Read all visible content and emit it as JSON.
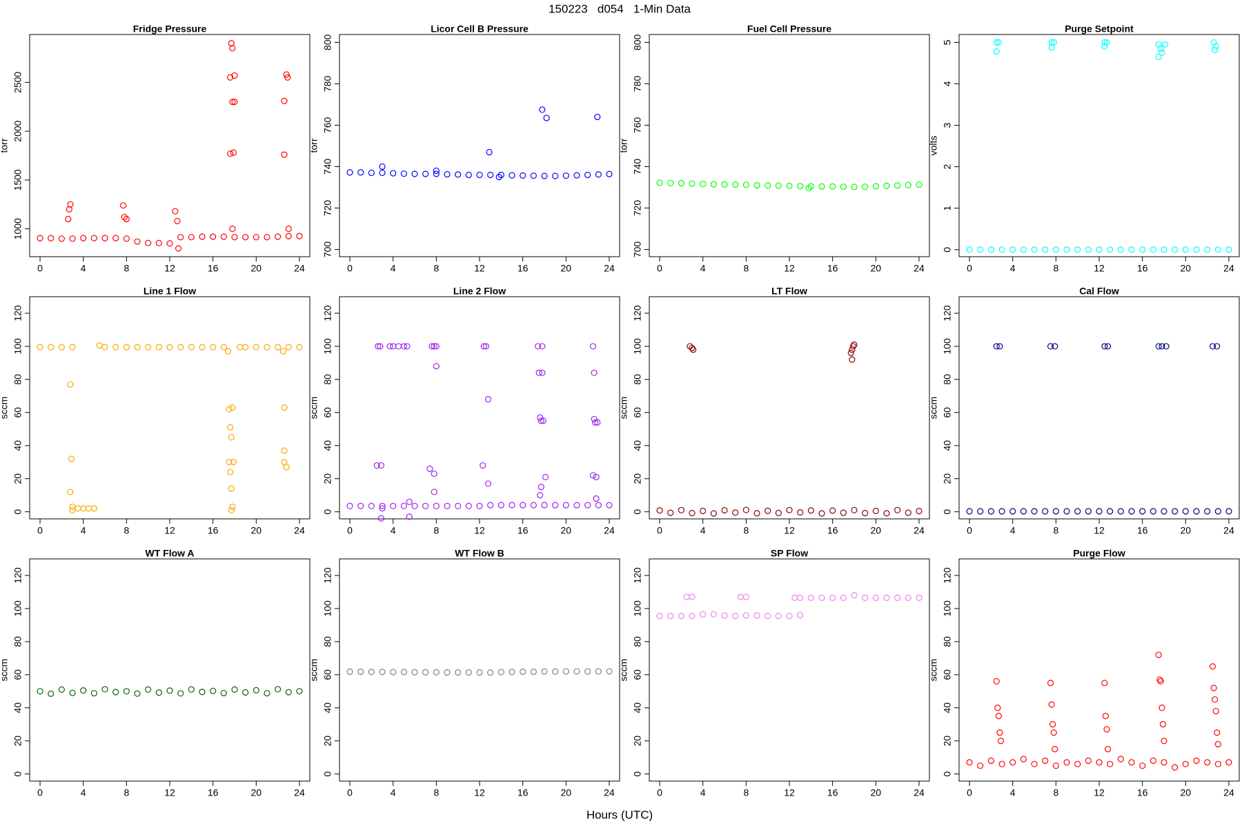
{
  "title": "150223   d054   1-Min Data",
  "xlabel": "Hours (UTC)",
  "chart_data": [
    {
      "type": "scatter",
      "title": "Fridge Pressure",
      "ylabel": "torr",
      "color": "#ff0000",
      "xlim": [
        -0.96,
        24.96
      ],
      "xticks": [
        0,
        4,
        8,
        12,
        16,
        20,
        24
      ],
      "ylim": [
        715,
        2990
      ],
      "yticks": [
        1000,
        1500,
        2000,
        2500
      ],
      "x": [
        0,
        1,
        2,
        3,
        4,
        5,
        6,
        7,
        8,
        9,
        10,
        11,
        12,
        13,
        14,
        15,
        16,
        17,
        18,
        19,
        20,
        21,
        22,
        23,
        24,
        2.6,
        2.7,
        2.8,
        7.7,
        7.8,
        8,
        12.5,
        12.7,
        12.8,
        17.6,
        17.7,
        17.8,
        17.6,
        18,
        17.9,
        18,
        17.8,
        22.6,
        22.6,
        22.8,
        22.9,
        23,
        17.8
      ],
      "values": [
        905,
        905,
        900,
        900,
        905,
        905,
        905,
        905,
        900,
        870,
        855,
        855,
        850,
        915,
        915,
        920,
        920,
        920,
        915,
        915,
        915,
        915,
        920,
        925,
        925,
        1100,
        1200,
        1250,
        1240,
        1120,
        1100,
        1180,
        1080,
        800,
        2550,
        2900,
        2300,
        1770,
        2570,
        1780,
        2300,
        2850,
        2310,
        1760,
        2580,
        2550,
        1000,
        1000
      ]
    },
    {
      "type": "scatter",
      "title": "Licor Cell B Pressure",
      "ylabel": "torr",
      "color": "#0000ff",
      "xlim": [
        -0.96,
        24.96
      ],
      "xticks": [
        0,
        4,
        8,
        12,
        16,
        20,
        24
      ],
      "ylim": [
        696.5,
        803.8
      ],
      "yticks": [
        700,
        720,
        740,
        760,
        780,
        800
      ],
      "x": [
        0,
        1,
        2,
        3,
        4,
        5,
        6,
        7,
        8,
        9,
        10,
        11,
        12,
        13,
        14,
        15,
        16,
        17,
        18,
        19,
        20,
        21,
        22,
        23,
        24,
        3,
        8,
        12.9,
        13.8,
        17.8,
        18.2,
        22.9
      ],
      "values": [
        737.2,
        737.2,
        737,
        737,
        736.8,
        736.6,
        736.5,
        736.5,
        736.5,
        736.3,
        736.2,
        736,
        736,
        736,
        736,
        735.8,
        735.7,
        735.6,
        735.5,
        735.5,
        735.6,
        735.8,
        736,
        736.2,
        736.4,
        740,
        738,
        747,
        735,
        767.5,
        763.5,
        764
      ]
    },
    {
      "type": "scatter",
      "title": "Fuel Cell Pressure",
      "ylabel": "torr",
      "color": "#00ff00",
      "xlim": [
        -0.96,
        24.96
      ],
      "xticks": [
        0,
        4,
        8,
        12,
        16,
        20,
        24
      ],
      "ylim": [
        696.5,
        803.8
      ],
      "yticks": [
        700,
        720,
        740,
        760,
        780,
        800
      ],
      "x": [
        0,
        1,
        2,
        3,
        4,
        5,
        6,
        7,
        8,
        9,
        10,
        11,
        12,
        13,
        14,
        15,
        16,
        17,
        18,
        19,
        20,
        21,
        22,
        23,
        24,
        13.8
      ],
      "values": [
        732.2,
        732.1,
        732,
        731.8,
        731.6,
        731.5,
        731.4,
        731.3,
        731.2,
        731,
        730.9,
        730.8,
        730.7,
        730.6,
        730.5,
        730.4,
        730.4,
        730.3,
        730.2,
        730.3,
        730.5,
        730.7,
        730.9,
        731.1,
        731.3,
        729.6
      ]
    },
    {
      "type": "scatter",
      "title": "Purge Setpoint",
      "ylabel": "volts",
      "color": "#00ffff",
      "xlim": [
        -0.96,
        24.96
      ],
      "xticks": [
        0,
        4,
        8,
        12,
        16,
        20,
        24
      ],
      "ylim": [
        -0.17,
        5.19
      ],
      "yticks": [
        0,
        1,
        2,
        3,
        4,
        5
      ],
      "x": [
        0,
        1,
        2,
        3,
        4,
        5,
        6,
        7,
        8,
        9,
        10,
        11,
        12,
        13,
        14,
        15,
        16,
        17,
        18,
        19,
        20,
        21,
        22,
        23,
        24,
        2.5,
        2.7,
        2.5,
        7.6,
        7.8,
        7.6,
        12.5,
        12.7,
        12.5,
        17.5,
        17.7,
        17.8,
        17.5,
        18.1,
        22.6,
        22.8,
        22.7
      ],
      "values": [
        0,
        0,
        0,
        0,
        0,
        0,
        0,
        0,
        0,
        0,
        0,
        0,
        0,
        0,
        0,
        0,
        0,
        0,
        0,
        0,
        0,
        0,
        0,
        0,
        0,
        5,
        5,
        4.78,
        5,
        5,
        4.88,
        5,
        5,
        4.9,
        4.95,
        4.85,
        4.75,
        4.65,
        4.95,
        5,
        4.9,
        4.82
      ]
    },
    {
      "type": "scatter",
      "title": "Line 1 Flow",
      "ylabel": "sccm",
      "color": "#ffa500",
      "xlim": [
        -0.96,
        24.96
      ],
      "xticks": [
        0,
        4,
        8,
        12,
        16,
        20,
        24
      ],
      "ylim": [
        -4.3,
        130
      ],
      "yticks": [
        0,
        20,
        40,
        60,
        80,
        100,
        120
      ],
      "x": [
        0,
        1,
        2,
        3,
        3.5,
        4,
        4.5,
        5,
        5.5,
        6,
        7,
        8,
        9,
        10,
        11,
        12,
        13,
        14,
        15,
        16,
        17,
        18.5,
        19,
        20,
        21,
        22,
        23,
        24,
        2.8,
        2.9,
        2.8,
        3,
        3,
        17.5,
        17.8,
        17.6,
        17.7,
        17.5,
        17.6,
        17.9,
        17.7,
        17.8,
        17.7,
        17.4,
        22.6,
        22.6,
        22.8,
        22.6,
        22.5
      ],
      "values": [
        99.5,
        99.5,
        99.5,
        99.5,
        2,
        2,
        2,
        2,
        100.5,
        99.5,
        99.5,
        99.5,
        99.5,
        99.5,
        99.5,
        99.5,
        99.5,
        99.5,
        99.5,
        99.5,
        99.5,
        99.5,
        99.5,
        99.5,
        99.5,
        99.5,
        99.5,
        99.5,
        77,
        32,
        12,
        3,
        1,
        62,
        63,
        51,
        45,
        30,
        24,
        30,
        14,
        3,
        1,
        97,
        63,
        37,
        27,
        30,
        97
      ]
    },
    {
      "type": "scatter",
      "title": "Line 2 Flow",
      "ylabel": "sccm",
      "color": "#a020f0",
      "xlim": [
        -0.96,
        24.96
      ],
      "xticks": [
        0,
        4,
        8,
        12,
        16,
        20,
        24
      ],
      "ylim": [
        -4.3,
        130
      ],
      "yticks": [
        0,
        20,
        40,
        60,
        80,
        100,
        120
      ],
      "x": [
        0,
        1,
        2,
        3,
        4,
        5,
        6,
        7,
        8,
        9,
        10,
        11,
        12,
        13,
        14,
        15,
        16,
        17,
        18,
        19,
        20,
        21,
        22,
        23,
        24,
        2.6,
        2.8,
        3.7,
        4,
        4.5,
        5,
        5.3,
        7.6,
        7.8,
        8,
        12.4,
        12.6,
        2.5,
        2.9,
        2.9,
        3,
        5.5,
        5.5,
        7.4,
        7.8,
        8,
        7.8,
        12.3,
        12.8,
        12.8,
        17.4,
        17.5,
        17.8,
        17.8,
        17.6,
        17.7,
        17.9,
        17.7,
        18.1,
        17.6,
        22.5,
        22.6,
        22.6,
        22.7,
        22.9,
        22.5,
        22.8,
        22.8
      ],
      "values": [
        3.5,
        3.5,
        3.5,
        3.5,
        3.5,
        3.5,
        3.5,
        3.5,
        3.5,
        3.5,
        3.5,
        3.5,
        3.5,
        4,
        4,
        4,
        4,
        4,
        4,
        4,
        4,
        4,
        4,
        4,
        4,
        100,
        100,
        100,
        100,
        100,
        100,
        100,
        100,
        100,
        100,
        100,
        100,
        28,
        28,
        -4,
        2,
        6,
        -3,
        26,
        23,
        88,
        12,
        28,
        68,
        17,
        100,
        84,
        100,
        84,
        57,
        55,
        55,
        15,
        21,
        10,
        100,
        84,
        56,
        54,
        54,
        22,
        21,
        8
      ]
    },
    {
      "type": "scatter",
      "title": "LT Flow",
      "ylabel": "sccm",
      "color": "#8b0000",
      "xlim": [
        -0.96,
        24.96
      ],
      "xticks": [
        0,
        4,
        8,
        12,
        16,
        20,
        24
      ],
      "ylim": [
        -4.3,
        130
      ],
      "yticks": [
        0,
        20,
        40,
        60,
        80,
        100,
        120
      ],
      "x": [
        0,
        1,
        2,
        3,
        4,
        5,
        6,
        7,
        8,
        9,
        10,
        11,
        12,
        13,
        14,
        15,
        16,
        17,
        18,
        19,
        20,
        21,
        22,
        23,
        24,
        2.8,
        3,
        3.1,
        17.7,
        17.8,
        17.9,
        18,
        17.8
      ],
      "values": [
        0.8,
        -0.6,
        1,
        -0.8,
        0.5,
        -1,
        0.9,
        -0.5,
        1.1,
        -0.9,
        0.6,
        -0.7,
        1,
        -0.4,
        0.8,
        -1,
        0.7,
        -0.6,
        1,
        -0.8,
        0.5,
        -0.9,
        1,
        -0.6,
        0.4,
        100,
        99,
        98,
        96,
        92,
        100,
        101,
        98
      ]
    },
    {
      "type": "scatter",
      "title": "Cal Flow",
      "ylabel": "sccm",
      "color": "#000080",
      "xlim": [
        -0.96,
        24.96
      ],
      "xticks": [
        0,
        4,
        8,
        12,
        16,
        20,
        24
      ],
      "ylim": [
        -4.3,
        130
      ],
      "yticks": [
        0,
        20,
        40,
        60,
        80,
        100,
        120
      ],
      "x": [
        0,
        1,
        2,
        3,
        4,
        5,
        6,
        7,
        8,
        9,
        10,
        11,
        12,
        13,
        14,
        15,
        16,
        17,
        18,
        19,
        20,
        21,
        22,
        23,
        24,
        2.5,
        2.8,
        7.5,
        7.9,
        12.5,
        12.8,
        17.5,
        17.8,
        18.2,
        22.5,
        22.9
      ],
      "values": [
        0.3,
        0.3,
        0.3,
        0.3,
        0.3,
        0.3,
        0.3,
        0.3,
        0.3,
        0.3,
        0.3,
        0.3,
        0.3,
        0.3,
        0.3,
        0.3,
        0.3,
        0.3,
        0.3,
        0.3,
        0.3,
        0.3,
        0.3,
        0.3,
        0.3,
        100,
        100,
        100,
        100,
        100,
        100,
        100,
        100,
        100,
        100,
        100
      ]
    },
    {
      "type": "scatter",
      "title": "WT Flow A",
      "ylabel": "sccm",
      "color": "#006400",
      "xlim": [
        -0.96,
        24.96
      ],
      "xticks": [
        0,
        4,
        8,
        12,
        16,
        20,
        24
      ],
      "ylim": [
        -4.3,
        130
      ],
      "yticks": [
        0,
        20,
        40,
        60,
        80,
        100,
        120
      ],
      "x": [
        0,
        1,
        2,
        3,
        4,
        5,
        6,
        7,
        8,
        9,
        10,
        11,
        12,
        13,
        14,
        15,
        16,
        17,
        18,
        19,
        20,
        21,
        22,
        23,
        24
      ],
      "values": [
        50,
        48.5,
        51,
        49,
        50.5,
        48.8,
        51.2,
        49.5,
        50,
        48.6,
        51,
        49.2,
        50.4,
        48.7,
        51.1,
        49.6,
        50.2,
        48.9,
        51,
        49.3,
        50.6,
        48.8,
        51.2,
        49.4,
        50
      ]
    },
    {
      "type": "scatter",
      "title": "WT Flow B",
      "ylabel": "sccm",
      "color": "#808080",
      "xlim": [
        -0.96,
        24.96
      ],
      "xticks": [
        0,
        4,
        8,
        12,
        16,
        20,
        24
      ],
      "ylim": [
        -4.3,
        130
      ],
      "yticks": [
        0,
        20,
        40,
        60,
        80,
        100,
        120
      ],
      "x": [
        0,
        1,
        2,
        3,
        4,
        5,
        6,
        7,
        8,
        9,
        10,
        11,
        12,
        13,
        14,
        15,
        16,
        17,
        18,
        19,
        20,
        21,
        22,
        23,
        24
      ],
      "values": [
        61.8,
        61.8,
        61.7,
        61.7,
        61.6,
        61.6,
        61.5,
        61.5,
        61.5,
        61.4,
        61.4,
        61.4,
        61.4,
        61.3,
        61.6,
        61.7,
        61.8,
        61.8,
        61.9,
        61.9,
        62,
        62,
        62,
        62,
        62
      ]
    },
    {
      "type": "scatter",
      "title": "SP Flow",
      "ylabel": "sccm",
      "color": "#ee82ee",
      "xlim": [
        -0.96,
        24.96
      ],
      "xticks": [
        0,
        4,
        8,
        12,
        16,
        20,
        24
      ],
      "ylim": [
        -4.3,
        130
      ],
      "yticks": [
        0,
        20,
        40,
        60,
        80,
        100,
        120
      ],
      "x": [
        0,
        1,
        2,
        3,
        4,
        5,
        6,
        7,
        8,
        9,
        10,
        11,
        12,
        13,
        14,
        15,
        16,
        17,
        18,
        19,
        20,
        21,
        22,
        23,
        24,
        2.5,
        3,
        7.5,
        8,
        12.5,
        13
      ],
      "values": [
        95.5,
        95.5,
        95.5,
        95.5,
        96.5,
        96.5,
        95.8,
        95.5,
        95.8,
        95.8,
        95.5,
        95.5,
        95.5,
        106.5,
        106.5,
        106.5,
        106.5,
        106.5,
        108,
        106.5,
        106.5,
        106.5,
        106.5,
        106.5,
        106.5,
        107,
        107,
        107,
        107,
        106.5,
        96
      ]
    },
    {
      "type": "scatter",
      "title": "Purge Flow",
      "ylabel": "sccm",
      "color": "#ff0000",
      "xlim": [
        -0.96,
        24.96
      ],
      "xticks": [
        0,
        4,
        8,
        12,
        16,
        20,
        24
      ],
      "ylim": [
        -4.3,
        130
      ],
      "yticks": [
        0,
        20,
        40,
        60,
        80,
        100,
        120
      ],
      "x": [
        0,
        1,
        2,
        3,
        4,
        5,
        6,
        7,
        8,
        9,
        10,
        11,
        12,
        13,
        14,
        15,
        16,
        17,
        18,
        19,
        20,
        21,
        22,
        23,
        24,
        2.5,
        2.6,
        2.7,
        2.8,
        2.9,
        7.5,
        7.6,
        7.7,
        7.8,
        7.9,
        12.5,
        12.6,
        12.7,
        12.8,
        17.5,
        17.6,
        17.7,
        17.8,
        17.9,
        18,
        22.5,
        22.6,
        22.7,
        22.8,
        22.9,
        23
      ],
      "values": [
        7,
        5,
        8,
        6,
        7,
        9,
        6,
        8,
        5,
        7,
        6,
        8,
        7,
        6,
        9,
        7,
        5,
        8,
        7,
        4,
        6,
        8,
        7,
        6,
        7,
        56,
        40,
        35,
        25,
        20,
        55,
        42,
        30,
        25,
        15,
        55,
        35,
        27,
        15,
        72,
        57,
        56,
        40,
        30,
        20,
        65,
        52,
        45,
        38,
        25,
        18
      ]
    }
  ]
}
